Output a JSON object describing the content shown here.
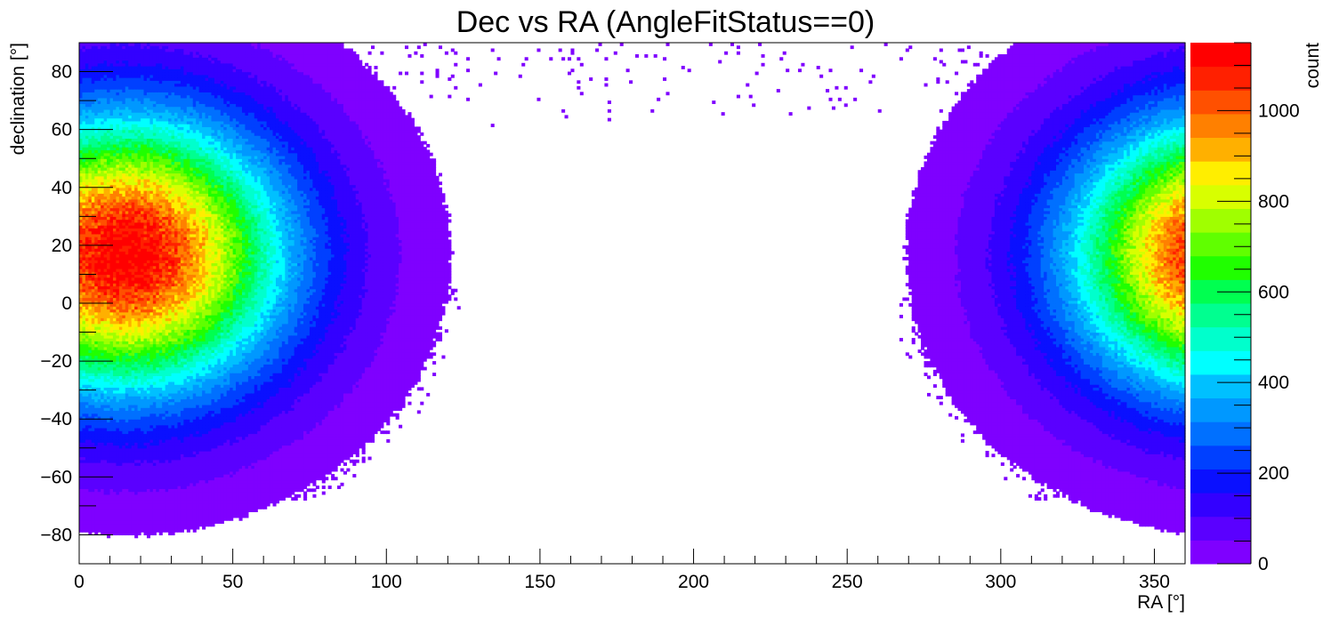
{
  "chart_data": {
    "type": "heatmap",
    "title": "Dec vs RA (AngleFitStatus==0)",
    "xlabel": "RA [°]",
    "ylabel": "declination [°]",
    "zlabel": "count",
    "xlim": [
      0,
      360
    ],
    "ylim": [
      -90,
      90
    ],
    "zlim": [
      0,
      1150
    ],
    "x_ticks": [
      0,
      50,
      100,
      150,
      200,
      250,
      300,
      350
    ],
    "x_tick_labels": [
      "0",
      "50",
      "100",
      "150",
      "200",
      "250",
      "300",
      "350"
    ],
    "y_ticks": [
      -80,
      -60,
      -40,
      -20,
      0,
      20,
      40,
      60,
      80
    ],
    "y_tick_labels": [
      "−80",
      "−60",
      "−40",
      "−20",
      "0",
      "20",
      "40",
      "60",
      "80"
    ],
    "z_ticks": [
      0,
      200,
      400,
      600,
      800,
      1000
    ],
    "z_tick_labels": [
      "0",
      "200",
      "400",
      "600",
      "800",
      "1000"
    ],
    "palette": [
      "#7f00ff",
      "#5a00ff",
      "#3300ff",
      "#0a10ff",
      "#0040ff",
      "#0070ff",
      "#0098ff",
      "#00c0ff",
      "#00ffff",
      "#00ffcc",
      "#00ff90",
      "#00ff50",
      "#20ff00",
      "#60ff00",
      "#a0ff00",
      "#d8ff00",
      "#ffee00",
      "#ffb000",
      "#ff8000",
      "#ff5000",
      "#ff2000",
      "#ff0000"
    ],
    "hotspot": {
      "ra": 15,
      "dec": 17,
      "peak_count": 1150
    },
    "grid": false,
    "legend": "color scale at right"
  }
}
